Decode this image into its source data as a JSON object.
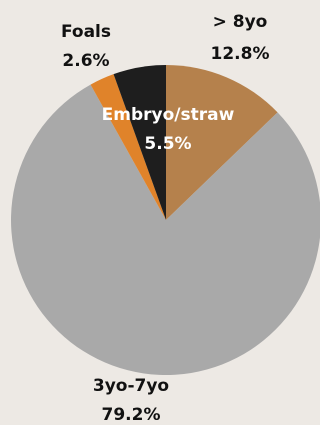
{
  "chart_data": {
    "type": "pie",
    "title": "",
    "slices": [
      {
        "label": "> 8yo",
        "value": 12.8,
        "display": "12.8%",
        "color": "#b5814c"
      },
      {
        "label": "3yo-7yo",
        "value": 79.2,
        "display": "79.2%",
        "color": "#a9a9a9"
      },
      {
        "label": "Foals",
        "value": 2.6,
        "display": "2.6%",
        "color": "#e0832a"
      },
      {
        "label": "Embryo/straw",
        "value": 5.5,
        "display": "5.5%",
        "color": "#1e1e1e"
      }
    ],
    "start_angle_deg": 0,
    "direction": "clockwise"
  },
  "colors": {
    "background": "#ede9e4",
    "label_dark": "#111111",
    "label_light": "#ffffff"
  }
}
